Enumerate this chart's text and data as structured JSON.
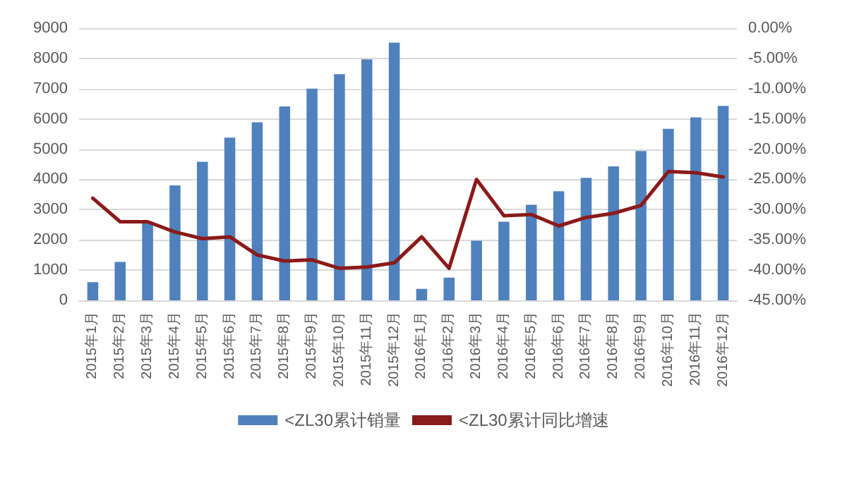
{
  "chart_data": {
    "type": "bar",
    "categories": [
      "2015年1月",
      "2015年2月",
      "2015年3月",
      "2015年4月",
      "2015年5月",
      "2015年6月",
      "2015年7月",
      "2015年8月",
      "2015年9月",
      "2015年10月",
      "2015年11月",
      "2015年12月",
      "2016年1月",
      "2016年2月",
      "2016年3月",
      "2016年4月",
      "2016年5月",
      "2016年6月",
      "2016年7月",
      "2016年8月",
      "2016年9月",
      "2016年10月",
      "2016年11月",
      "2016年12月"
    ],
    "series": [
      {
        "name": "<ZL30累计销量",
        "color": "#4f81bd",
        "values": [
          600,
          1270,
          2600,
          3800,
          4580,
          5380,
          5890,
          6410,
          7000,
          7480,
          7970,
          8520,
          380,
          750,
          1970,
          2600,
          3160,
          3610,
          4050,
          4430,
          4940,
          5670,
          6050,
          6430
        ]
      },
      {
        "name": "<ZL30累计同比增速",
        "type": "line",
        "axis": "y2",
        "color": "#8b1a1a",
        "values": [
          -28.1,
          -32.0,
          -32.0,
          -33.7,
          -34.8,
          -34.5,
          -37.5,
          -38.5,
          -38.3,
          -39.7,
          -39.5,
          -38.8,
          -34.5,
          -39.7,
          -25.0,
          -31.0,
          -30.8,
          -32.7,
          -31.3,
          -30.6,
          -29.3,
          -23.7,
          -23.9,
          -24.6
        ]
      }
    ],
    "ylim": [
      0,
      9000
    ],
    "yticks": [
      0,
      1000,
      2000,
      3000,
      4000,
      5000,
      6000,
      7000,
      8000,
      9000
    ],
    "y2lim": [
      -45,
      0
    ],
    "y2ticks": [
      {
        "value": -45,
        "label": "-45.00%"
      },
      {
        "value": -40,
        "label": "-40.00%"
      },
      {
        "value": -35,
        "label": "-35.00%"
      },
      {
        "value": -30,
        "label": "-30.00%"
      },
      {
        "value": -25,
        "label": "-25.00%"
      },
      {
        "value": -20,
        "label": "-20.00%"
      },
      {
        "value": -15,
        "label": "-15.00%"
      },
      {
        "value": -10,
        "label": "-10.00%"
      },
      {
        "value": -5,
        "label": "-5.00%"
      },
      {
        "value": 0,
        "label": "0.00%"
      }
    ],
    "grid": "y",
    "legend": "bottom",
    "marker": "none",
    "line_style": "solid"
  }
}
